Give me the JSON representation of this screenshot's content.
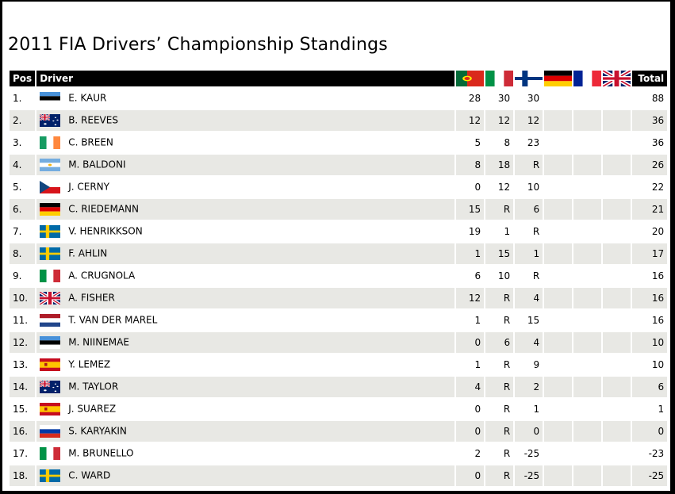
{
  "title": "2011 FIA Drivers’ Championship Standings",
  "header": {
    "pos": "Pos",
    "driver": "Driver",
    "total": "Total",
    "events": [
      "pt",
      "it",
      "fi",
      "de",
      "fr",
      "gb"
    ]
  },
  "rows": [
    {
      "pos": "1.",
      "flag": "ee",
      "name": "E. KAUR",
      "results": [
        "28",
        "30",
        "30",
        "",
        "",
        ""
      ],
      "total": "88"
    },
    {
      "pos": "2.",
      "flag": "au",
      "name": "B. REEVES",
      "results": [
        "12",
        "12",
        "12",
        "",
        "",
        ""
      ],
      "total": "36"
    },
    {
      "pos": "3.",
      "flag": "ie",
      "name": "C. BREEN",
      "results": [
        "5",
        "8",
        "23",
        "",
        "",
        ""
      ],
      "total": "36"
    },
    {
      "pos": "4.",
      "flag": "ar",
      "name": "M. BALDONI",
      "results": [
        "8",
        "18",
        "R",
        "",
        "",
        ""
      ],
      "total": "26"
    },
    {
      "pos": "5.",
      "flag": "cz",
      "name": "J. CERNY",
      "results": [
        "0",
        "12",
        "10",
        "",
        "",
        ""
      ],
      "total": "22"
    },
    {
      "pos": "6.",
      "flag": "de",
      "name": "C. RIEDEMANN",
      "results": [
        "15",
        "R",
        "6",
        "",
        "",
        ""
      ],
      "total": "21"
    },
    {
      "pos": "7.",
      "flag": "se",
      "name": "V. HENRIKKSON",
      "results": [
        "19",
        "1",
        "R",
        "",
        "",
        ""
      ],
      "total": "20"
    },
    {
      "pos": "8.",
      "flag": "se",
      "name": "F. AHLIN",
      "results": [
        "1",
        "15",
        "1",
        "",
        "",
        ""
      ],
      "total": "17"
    },
    {
      "pos": "9.",
      "flag": "it",
      "name": "A. CRUGNOLA",
      "results": [
        "6",
        "10",
        "R",
        "",
        "",
        ""
      ],
      "total": "16"
    },
    {
      "pos": "10.",
      "flag": "gb",
      "name": "A. FISHER",
      "results": [
        "12",
        "R",
        "4",
        "",
        "",
        ""
      ],
      "total": "16"
    },
    {
      "pos": "11.",
      "flag": "nl",
      "name": "T. VAN DER MAREL",
      "results": [
        "1",
        "R",
        "15",
        "",
        "",
        ""
      ],
      "total": "16"
    },
    {
      "pos": "12.",
      "flag": "ee",
      "name": "M. NIINEMAE",
      "results": [
        "0",
        "6",
        "4",
        "",
        "",
        ""
      ],
      "total": "10"
    },
    {
      "pos": "13.",
      "flag": "es",
      "name": "Y. LEMEZ",
      "results": [
        "1",
        "R",
        "9",
        "",
        "",
        ""
      ],
      "total": "10"
    },
    {
      "pos": "14.",
      "flag": "au",
      "name": "M. TAYLOR",
      "results": [
        "4",
        "R",
        "2",
        "",
        "",
        ""
      ],
      "total": "6"
    },
    {
      "pos": "15.",
      "flag": "es",
      "name": "J. SUAREZ",
      "results": [
        "0",
        "R",
        "1",
        "",
        "",
        ""
      ],
      "total": "1"
    },
    {
      "pos": "16.",
      "flag": "ru",
      "name": "S. KARYAKIN",
      "results": [
        "0",
        "R",
        "0",
        "",
        "",
        ""
      ],
      "total": "0"
    },
    {
      "pos": "17.",
      "flag": "it",
      "name": "M. BRUNELLO",
      "results": [
        "2",
        "R",
        "-25",
        "",
        "",
        ""
      ],
      "total": "-23"
    },
    {
      "pos": "18.",
      "flag": "se",
      "name": "C. WARD",
      "results": [
        "0",
        "R",
        "-25",
        "",
        "",
        ""
      ],
      "total": "-25"
    }
  ],
  "colors": {
    "row_alt": "#e8e8e4",
    "header_bg": "#000000"
  }
}
